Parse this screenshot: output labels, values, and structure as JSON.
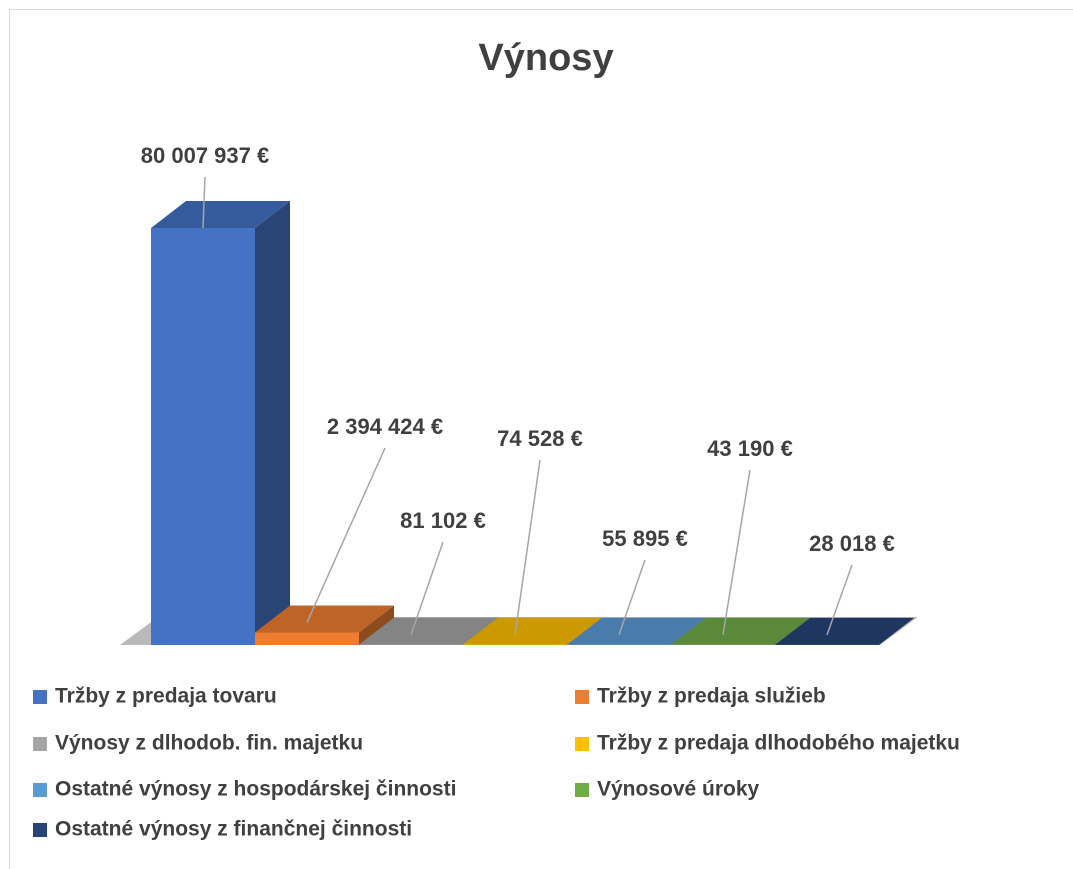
{
  "chart_data": {
    "type": "bar3d",
    "title": "Výnosy",
    "categories": [
      "Tržby z predaja tovaru",
      "Tržby z predaja služieb",
      "Výnosy z dlhodob. fin. majetku",
      "Tržby z predaja dlhodobého majetku",
      "Ostatné výnosy z hospodárskej činnosti",
      "Výnosové úroky",
      "Ostatné výnosy z finančnej činnosti"
    ],
    "values": [
      80007937,
      2394424,
      81102,
      74528,
      55895,
      43190,
      28018
    ],
    "value_labels": [
      "80 007 937 €",
      "2 394 424 €",
      "81 102 €",
      "74 528 €",
      "55 895 €",
      "43 190 €",
      "28 018 €"
    ],
    "colors": [
      "#4472c4",
      "#ed7d31",
      "#a5a5a5",
      "#ffc000",
      "#5b9bd5",
      "#70ad47",
      "#264478"
    ]
  }
}
